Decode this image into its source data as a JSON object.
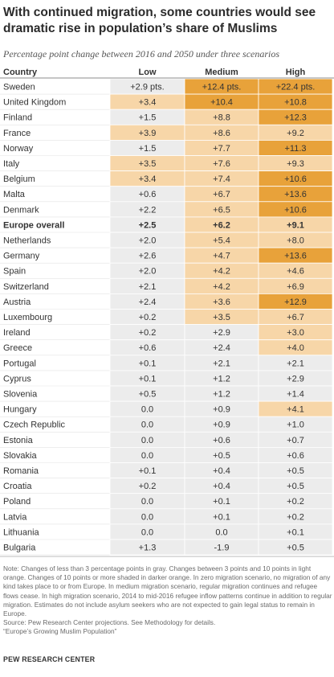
{
  "title": "With continued migration, some countries would see dramatic rise in population’s share of Muslims",
  "subtitle": "Percentage point change between 2016 and 2050 under three scenarios",
  "colors": {
    "gray": "#ececec",
    "light_orange": "#f7d6a8",
    "dark_orange": "#e8a23a"
  },
  "chart_data": {
    "type": "table",
    "columns": [
      "Country",
      "Low",
      "Medium",
      "High"
    ],
    "rows": [
      {
        "country": "Sweden",
        "low": "+2.9 pts.",
        "medium": "+12.4 pts.",
        "high": "+22.4 pts.",
        "values": [
          2.9,
          12.4,
          22.4
        ],
        "bold": false
      },
      {
        "country": "United Kingdom",
        "low": "+3.4",
        "medium": "+10.4",
        "high": "+10.8",
        "values": [
          3.4,
          10.4,
          10.8
        ],
        "bold": false
      },
      {
        "country": "Finland",
        "low": "+1.5",
        "medium": "+8.8",
        "high": "+12.3",
        "values": [
          1.5,
          8.8,
          12.3
        ],
        "bold": false
      },
      {
        "country": "France",
        "low": "+3.9",
        "medium": "+8.6",
        "high": "+9.2",
        "values": [
          3.9,
          8.6,
          9.2
        ],
        "bold": false
      },
      {
        "country": "Norway",
        "low": "+1.5",
        "medium": "+7.7",
        "high": "+11.3",
        "values": [
          1.5,
          7.7,
          11.3
        ],
        "bold": false
      },
      {
        "country": "Italy",
        "low": "+3.5",
        "medium": "+7.6",
        "high": "+9.3",
        "values": [
          3.5,
          7.6,
          9.3
        ],
        "bold": false
      },
      {
        "country": "Belgium",
        "low": "+3.4",
        "medium": "+7.4",
        "high": "+10.6",
        "values": [
          3.4,
          7.4,
          10.6
        ],
        "bold": false
      },
      {
        "country": "Malta",
        "low": "+0.6",
        "medium": "+6.7",
        "high": "+13.6",
        "values": [
          0.6,
          6.7,
          13.6
        ],
        "bold": false
      },
      {
        "country": "Denmark",
        "low": "+2.2",
        "medium": "+6.5",
        "high": "+10.6",
        "values": [
          2.2,
          6.5,
          10.6
        ],
        "bold": false
      },
      {
        "country": "Europe overall",
        "low": "+2.5",
        "medium": "+6.2",
        "high": "+9.1",
        "values": [
          2.5,
          6.2,
          9.1
        ],
        "bold": true
      },
      {
        "country": "Netherlands",
        "low": "+2.0",
        "medium": "+5.4",
        "high": "+8.0",
        "values": [
          2.0,
          5.4,
          8.0
        ],
        "bold": false
      },
      {
        "country": "Germany",
        "low": "+2.6",
        "medium": "+4.7",
        "high": "+13.6",
        "values": [
          2.6,
          4.7,
          13.6
        ],
        "bold": false
      },
      {
        "country": "Spain",
        "low": "+2.0",
        "medium": "+4.2",
        "high": "+4.6",
        "values": [
          2.0,
          4.2,
          4.6
        ],
        "bold": false
      },
      {
        "country": "Switzerland",
        "low": "+2.1",
        "medium": "+4.2",
        "high": "+6.9",
        "values": [
          2.1,
          4.2,
          6.9
        ],
        "bold": false
      },
      {
        "country": "Austria",
        "low": "+2.4",
        "medium": "+3.6",
        "high": "+12.9",
        "values": [
          2.4,
          3.6,
          12.9
        ],
        "bold": false
      },
      {
        "country": "Luxembourg",
        "low": "+0.2",
        "medium": "+3.5",
        "high": "+6.7",
        "values": [
          0.2,
          3.5,
          6.7
        ],
        "bold": false
      },
      {
        "country": "Ireland",
        "low": "+0.2",
        "medium": "+2.9",
        "high": "+3.0",
        "values": [
          0.2,
          2.9,
          3.0
        ],
        "bold": false
      },
      {
        "country": "Greece",
        "low": "+0.6",
        "medium": "+2.4",
        "high": "+4.0",
        "values": [
          0.6,
          2.4,
          4.0
        ],
        "bold": false
      },
      {
        "country": "Portugal",
        "low": "+0.1",
        "medium": "+2.1",
        "high": "+2.1",
        "values": [
          0.1,
          2.1,
          2.1
        ],
        "bold": false
      },
      {
        "country": "Cyprus",
        "low": "+0.1",
        "medium": "+1.2",
        "high": "+2.9",
        "values": [
          0.1,
          1.2,
          2.9
        ],
        "bold": false
      },
      {
        "country": "Slovenia",
        "low": "+0.5",
        "medium": "+1.2",
        "high": "+1.4",
        "values": [
          0.5,
          1.2,
          1.4
        ],
        "bold": false
      },
      {
        "country": "Hungary",
        "low": "0.0",
        "medium": "+0.9",
        "high": "+4.1",
        "values": [
          0.0,
          0.9,
          4.1
        ],
        "bold": false
      },
      {
        "country": "Czech Republic",
        "low": "0.0",
        "medium": "+0.9",
        "high": "+1.0",
        "values": [
          0.0,
          0.9,
          1.0
        ],
        "bold": false
      },
      {
        "country": "Estonia",
        "low": "0.0",
        "medium": "+0.6",
        "high": "+0.7",
        "values": [
          0.0,
          0.6,
          0.7
        ],
        "bold": false
      },
      {
        "country": "Slovakia",
        "low": "0.0",
        "medium": "+0.5",
        "high": "+0.6",
        "values": [
          0.0,
          0.5,
          0.6
        ],
        "bold": false
      },
      {
        "country": "Romania",
        "low": "+0.1",
        "medium": "+0.4",
        "high": "+0.5",
        "values": [
          0.1,
          0.4,
          0.5
        ],
        "bold": false
      },
      {
        "country": "Croatia",
        "low": "+0.2",
        "medium": "+0.4",
        "high": "+0.5",
        "values": [
          0.2,
          0.4,
          0.5
        ],
        "bold": false
      },
      {
        "country": "Poland",
        "low": "0.0",
        "medium": "+0.1",
        "high": "+0.2",
        "values": [
          0.0,
          0.1,
          0.2
        ],
        "bold": false
      },
      {
        "country": "Latvia",
        "low": "0.0",
        "medium": "+0.1",
        "high": "+0.2",
        "values": [
          0.0,
          0.1,
          0.2
        ],
        "bold": false
      },
      {
        "country": "Lithuania",
        "low": "0.0",
        "medium": "0.0",
        "high": "+0.1",
        "values": [
          0.0,
          0.0,
          0.1
        ],
        "bold": false
      },
      {
        "country": "Bulgaria",
        "low": "+1.3",
        "medium": "-1.9",
        "high": "+0.5",
        "values": [
          1.3,
          -1.9,
          0.5
        ],
        "bold": false
      }
    ]
  },
  "note": "Note: Changes of less than 3 percentage points in gray. Changes between 3 points and 10 points in light orange. Changes of 10 points or more shaded in darker orange. In zero migration scenario, no migration of any kind takes place to or from Europe. In medium migration scenario, regular migration continues and refugee flows cease. In high migration scenario, 2014 to mid-2016 refugee inflow patterns continue in addition to regular migration. Estimates do not include asylum seekers who are not expected to gain legal status to remain in Europe.",
  "source": "Source: Pew Research Center projections. See Methodology for details.",
  "report": "“Europe’s Growing Muslim Population”",
  "footer": "PEW RESEARCH CENTER"
}
